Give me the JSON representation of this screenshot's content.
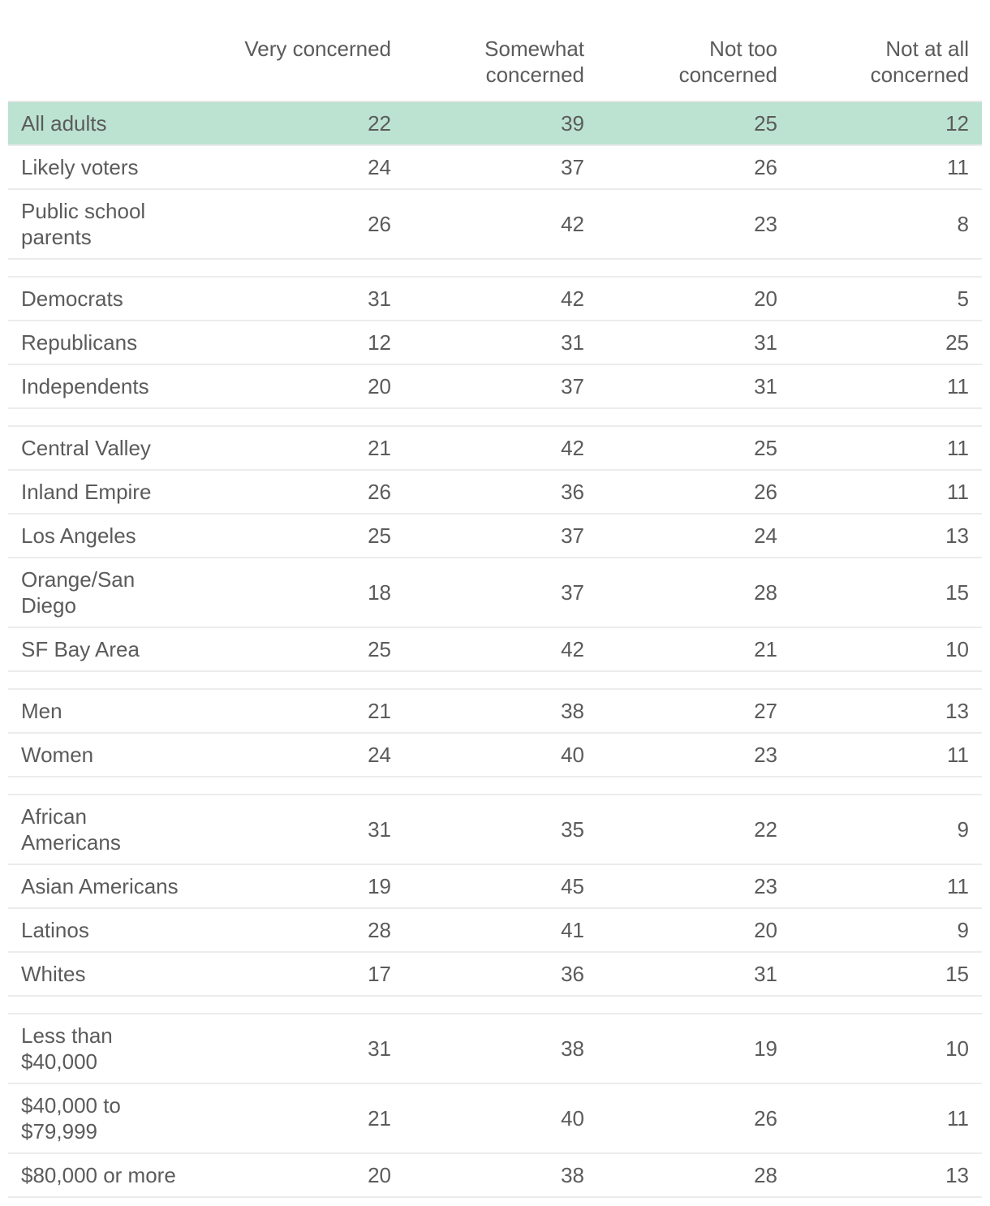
{
  "chart_data": {
    "type": "table",
    "columns": [
      "Very concerned",
      "Somewhat concerned",
      "Not too concerned",
      "Not at all concerned"
    ],
    "groups": [
      {
        "rows": [
          {
            "label": "All adults",
            "values": [
              22,
              39,
              25,
              12
            ],
            "highlight": true
          },
          {
            "label": "Likely voters",
            "values": [
              24,
              37,
              26,
              11
            ]
          },
          {
            "label": "Public school parents",
            "values": [
              26,
              42,
              23,
              8
            ]
          }
        ]
      },
      {
        "rows": [
          {
            "label": "Democrats",
            "values": [
              31,
              42,
              20,
              5
            ]
          },
          {
            "label": "Republicans",
            "values": [
              12,
              31,
              31,
              25
            ]
          },
          {
            "label": "Independents",
            "values": [
              20,
              37,
              31,
              11
            ]
          }
        ]
      },
      {
        "rows": [
          {
            "label": "Central Valley",
            "values": [
              21,
              42,
              25,
              11
            ]
          },
          {
            "label": "Inland Empire",
            "values": [
              26,
              36,
              26,
              11
            ]
          },
          {
            "label": "Los Angeles",
            "values": [
              25,
              37,
              24,
              13
            ]
          },
          {
            "label": "Orange/San Diego",
            "values": [
              18,
              37,
              28,
              15
            ]
          },
          {
            "label": "SF Bay Area",
            "values": [
              25,
              42,
              21,
              10
            ]
          }
        ]
      },
      {
        "rows": [
          {
            "label": "Men",
            "values": [
              21,
              38,
              27,
              13
            ]
          },
          {
            "label": "Women",
            "values": [
              24,
              40,
              23,
              11
            ]
          }
        ]
      },
      {
        "rows": [
          {
            "label": "African Americans",
            "values": [
              31,
              35,
              22,
              9
            ]
          },
          {
            "label": "Asian Americans",
            "values": [
              19,
              45,
              23,
              11
            ]
          },
          {
            "label": "Latinos",
            "values": [
              28,
              41,
              20,
              9
            ]
          },
          {
            "label": "Whites",
            "values": [
              17,
              36,
              31,
              15
            ]
          }
        ]
      },
      {
        "rows": [
          {
            "label": "Less than $40,000",
            "values": [
              31,
              38,
              19,
              10
            ]
          },
          {
            "label": "$40,000 to $79,999",
            "values": [
              21,
              40,
              26,
              11
            ]
          },
          {
            "label": "$80,000 or more",
            "values": [
              20,
              38,
              28,
              13
            ]
          }
        ]
      }
    ],
    "colors": {
      "highlight_row": "#bce3d1",
      "text": "#5b5b5b",
      "row_divider": "#ececec"
    }
  }
}
